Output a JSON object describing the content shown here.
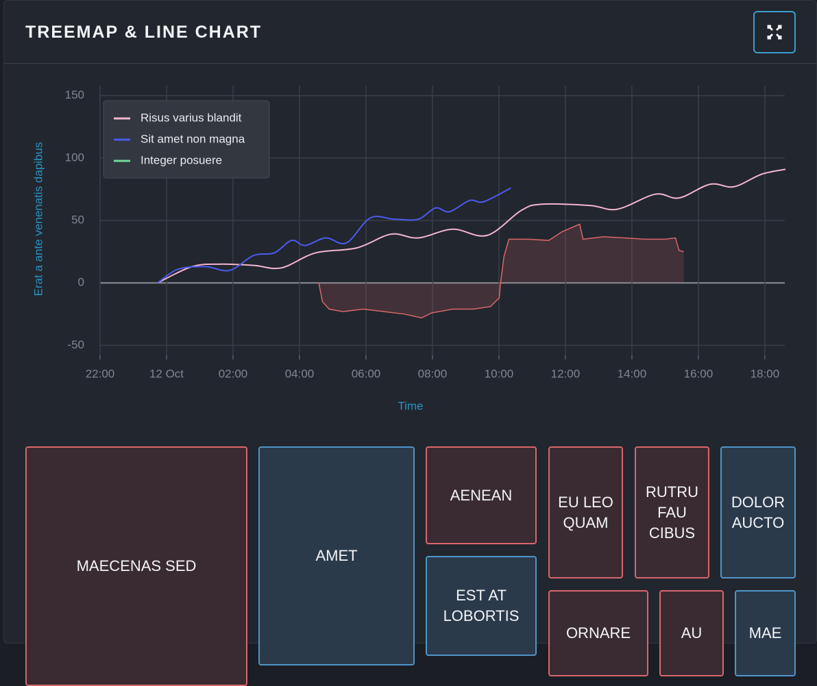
{
  "header": {
    "title": "TREEMAP & LINE CHART"
  },
  "chart_data": [
    {
      "type": "line",
      "x_label": "Time",
      "y_label": "Erat a ante venenatis dapibus",
      "xlim": [
        -2,
        18.6
      ],
      "xticks": [
        {
          "value": -2,
          "label": "22:00"
        },
        {
          "value": 0,
          "label": "12 Oct"
        },
        {
          "value": 2,
          "label": "02:00"
        },
        {
          "value": 4,
          "label": "04:00"
        },
        {
          "value": 6,
          "label": "06:00"
        },
        {
          "value": 8,
          "label": "08:00"
        },
        {
          "value": 10,
          "label": "10:00"
        },
        {
          "value": 12,
          "label": "12:00"
        },
        {
          "value": 14,
          "label": "14:00"
        },
        {
          "value": 16,
          "label": "16:00"
        },
        {
          "value": 18,
          "label": "18:00"
        }
      ],
      "ylim": [
        -58,
        158
      ],
      "yticks": [
        -50,
        0,
        50,
        100,
        150
      ],
      "grid": true,
      "legend": "upper left",
      "series": [
        {
          "name": "Risus varius blandit",
          "color": "#f4b6cf",
          "smooth": true,
          "x": [
            -0.27,
            0.76,
            1.59,
            2.62,
            3.45,
            4.48,
            5.72,
            6.75,
            7.57,
            8.61,
            9.64,
            10.67,
            11.29,
            12.73,
            13.56,
            14.7,
            15.42,
            16.35,
            17.07,
            17.9,
            18.62
          ],
          "values": [
            0,
            13,
            15,
            14,
            12,
            24,
            28,
            39,
            36,
            43,
            38,
            58,
            63,
            62,
            59,
            71,
            68,
            79,
            77,
            87,
            91
          ]
        },
        {
          "name": "Sit amet non magna",
          "color": "#4a5bf0",
          "smooth": true,
          "x": [
            -0.27,
            0.35,
            1.18,
            1.9,
            2.62,
            3.24,
            3.76,
            4.17,
            4.79,
            5.41,
            6.13,
            6.85,
            7.57,
            8.09,
            8.51,
            9.12,
            9.54,
            10.36
          ],
          "values": [
            0,
            11,
            13,
            10,
            22,
            24,
            34,
            30,
            36,
            32,
            52,
            51,
            51,
            60,
            57,
            66,
            65,
            76
          ]
        },
        {
          "name": "Integer posuere",
          "color": "#6fdc9a",
          "smooth": true,
          "x": [],
          "values": []
        },
        {
          "color": "#d9666c",
          "fill": true,
          "x": [
            4.58,
            4.69,
            4.89,
            5.3,
            5.92,
            6.54,
            7.16,
            7.67,
            7.98,
            8.61,
            9.23,
            9.74,
            10.01,
            10.05,
            10.15,
            10.3,
            10.88,
            11.5,
            11.9,
            12.43,
            12.53,
            13.15,
            13.77,
            14.39,
            15.0,
            15.31,
            15.42,
            15.56
          ],
          "values": [
            0,
            -15,
            -21,
            -23,
            -21,
            -23,
            -25,
            -28,
            -24,
            -21,
            -21,
            -19,
            -12,
            0,
            21,
            35,
            35,
            34,
            41,
            47,
            35,
            37,
            36,
            35,
            35,
            36,
            26,
            25
          ]
        }
      ]
    },
    {
      "type": "treemap",
      "labels": [
        "MAECENAS SED",
        "AMET",
        "AENEAN",
        "EST AT LOBORTIS",
        "EU LEO QUAM",
        "RUTRU FAU CIBUS",
        "DOLOR AUCTO",
        "ORNARE",
        "AU",
        "MAE"
      ],
      "values": [
        100,
        70,
        28,
        28,
        20,
        20,
        20,
        18,
        11,
        10
      ],
      "colors": [
        "#d9666c",
        "#4f95c8",
        "#d9666c",
        "#4f95c8",
        "#d9666c",
        "#d9666c",
        "#4f95c8",
        "#d9666c",
        "#d9666c",
        "#4f95c8"
      ]
    }
  ]
}
